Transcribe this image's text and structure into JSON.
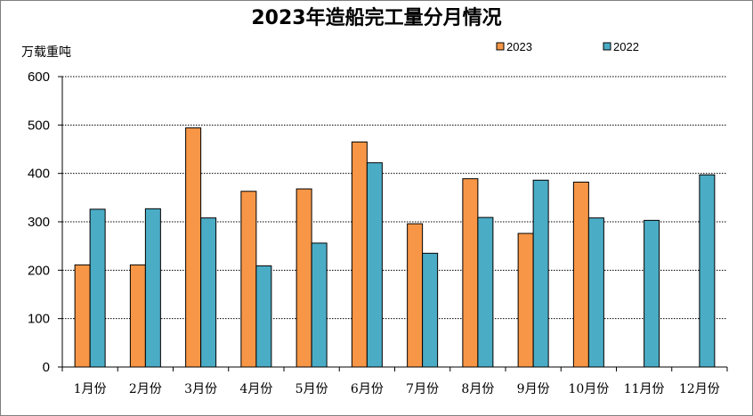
{
  "chart_data": {
    "type": "bar",
    "title": "2023年造船完工量分月情况",
    "ylabel": "万载重吨",
    "xlabel": "",
    "categories": [
      "1月份",
      "2月份",
      "3月份",
      "4月份",
      "5月份",
      "6月份",
      "7月份",
      "8月份",
      "9月份",
      "10月份",
      "11月份",
      "12月份"
    ],
    "series": [
      {
        "name": "2023",
        "color": "#F79646",
        "values": [
          211,
          211,
          494,
          363,
          368,
          465,
          296,
          389,
          276,
          382,
          null,
          null
        ]
      },
      {
        "name": "2022",
        "color": "#4BACC6",
        "values": [
          326,
          327,
          308,
          209,
          256,
          422,
          235,
          309,
          386,
          308,
          303,
          397
        ]
      }
    ],
    "ylim": [
      0,
      600
    ],
    "yticks": [
      0,
      100,
      200,
      300,
      400,
      500,
      600
    ],
    "grid": true,
    "legend_position": "top-right"
  }
}
